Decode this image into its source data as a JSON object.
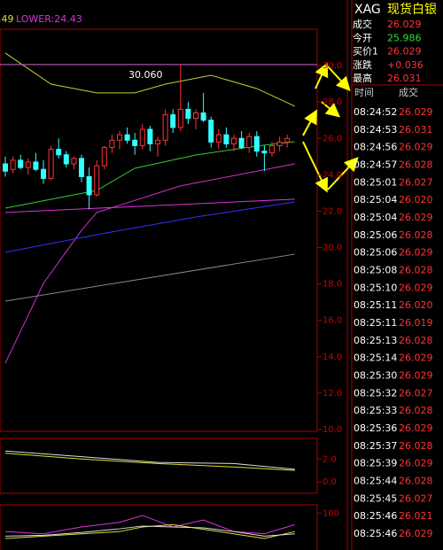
{
  "header": {
    "partial": ".49",
    "lower": "LOWER:24.43",
    "symbol": "XAG",
    "name": "现货白银"
  },
  "quote": [
    {
      "label": "成交",
      "value": "26.029",
      "color": "#ff3333"
    },
    {
      "label": "今开",
      "value": "25.986",
      "color": "#33dd33"
    },
    {
      "label": "买价1",
      "value": "26.029",
      "color": "#ff3333"
    },
    {
      "label": "涨跌",
      "value": "+0.036",
      "color": "#ff3333"
    },
    {
      "label": "最高",
      "value": "26.031",
      "color": "#ff3333"
    }
  ],
  "trades": {
    "headers": [
      "时间",
      "成交"
    ],
    "rows": [
      [
        "08:24:52",
        "26.029"
      ],
      [
        "08:24:53",
        "26.031"
      ],
      [
        "08:24:56",
        "26.029"
      ],
      [
        "08:24:57",
        "26.028"
      ],
      [
        "08:25:01",
        "26.027"
      ],
      [
        "08:25:04",
        "26.020"
      ],
      [
        "08:25:04",
        "26.029"
      ],
      [
        "08:25:06",
        "26.028"
      ],
      [
        "08:25:06",
        "26.029"
      ],
      [
        "08:25:08",
        "26.028"
      ],
      [
        "08:25:10",
        "26.029"
      ],
      [
        "08:25:11",
        "26.020"
      ],
      [
        "08:25:11",
        "26.019"
      ],
      [
        "08:25:13",
        "26.028"
      ],
      [
        "08:25:14",
        "26.029"
      ],
      [
        "08:25:30",
        "26.029"
      ],
      [
        "08:25:32",
        "26.027"
      ],
      [
        "08:25:33",
        "26.028"
      ],
      [
        "08:25:36",
        "26.029"
      ],
      [
        "08:25:37",
        "26.028"
      ],
      [
        "08:25:39",
        "26.029"
      ],
      [
        "08:25:44",
        "26.028"
      ],
      [
        "08:25:45",
        "26.027"
      ],
      [
        "08:25:46",
        "26.021"
      ],
      [
        "08:25:46",
        "26.029"
      ]
    ]
  },
  "chart_data": [
    {
      "type": "candlestick",
      "ylim": [
        10,
        32
      ],
      "yticks": [
        {
          "value": 30,
          "label": "30.0"
        },
        {
          "value": 28,
          "label": "28.0"
        },
        {
          "value": 26,
          "label": "26.0"
        },
        {
          "value": 24,
          "label": "24.0"
        },
        {
          "value": 22,
          "label": "22.0"
        },
        {
          "value": 20,
          "label": "20.0"
        },
        {
          "value": 18,
          "label": "18.0"
        },
        {
          "value": 16,
          "label": "16.0"
        },
        {
          "value": 14,
          "label": "14.0"
        },
        {
          "value": 12,
          "label": "12.0"
        },
        {
          "value": 10,
          "label": "10.0"
        }
      ],
      "up_color": "#ff3333",
      "down_color": "#33ffff",
      "max_marker": {
        "value": 30.06,
        "label": "30.060"
      },
      "open": [
        24.6,
        24.3,
        24.8,
        24.4,
        24.7,
        24.3,
        23.8,
        25.4,
        25.1,
        24.6,
        24.9,
        23.9,
        22.9,
        24.5,
        25.5,
        25.9,
        26.2,
        25.9,
        25.6,
        26.5,
        25.7,
        25.9,
        27.3,
        26.6,
        27.6,
        27.1,
        27.4,
        27.0,
        25.8,
        26.2,
        25.7,
        26.0,
        25.5,
        26.1,
        25.3,
        25.2,
        25.6,
        25.8
      ],
      "high": [
        25.0,
        25.0,
        25.1,
        24.9,
        25.2,
        24.8,
        25.6,
        26.0,
        25.3,
        25.0,
        25.1,
        24.4,
        24.8,
        25.6,
        26.2,
        26.4,
        26.6,
        26.3,
        26.8,
        26.7,
        26.1,
        27.6,
        27.6,
        30.06,
        28.0,
        27.6,
        28.5,
        27.2,
        26.5,
        26.6,
        26.2,
        26.4,
        26.3,
        26.4,
        25.6,
        25.8,
        26.1,
        26.2
      ],
      "low": [
        23.9,
        24.1,
        24.3,
        24.0,
        24.2,
        23.5,
        23.7,
        24.9,
        24.4,
        24.3,
        23.6,
        22.1,
        22.8,
        24.3,
        25.2,
        25.4,
        25.7,
        25.1,
        25.4,
        25.3,
        25.0,
        25.6,
        26.3,
        26.4,
        26.8,
        26.5,
        26.9,
        25.5,
        25.4,
        25.5,
        25.3,
        25.4,
        25.2,
        25.0,
        24.2,
        25.0,
        25.3,
        25.5
      ],
      "close": [
        24.2,
        24.8,
        24.4,
        24.7,
        24.3,
        23.8,
        25.4,
        25.1,
        24.6,
        24.9,
        23.9,
        22.9,
        24.5,
        25.5,
        25.9,
        26.2,
        25.9,
        25.6,
        26.5,
        25.7,
        25.9,
        27.3,
        26.6,
        27.6,
        27.1,
        27.4,
        27.0,
        25.8,
        26.2,
        25.7,
        26.0,
        25.5,
        26.1,
        25.3,
        25.2,
        25.6,
        25.8,
        26.0
      ],
      "lines": [
        {
          "color": "#cccc33",
          "x": [
            0,
            6,
            12,
            17,
            21,
            27,
            33,
            38
          ],
          "values": [
            30.69,
            28.98,
            28.5,
            28.5,
            28.98,
            29.47,
            28.74,
            27.77
          ]
        },
        {
          "color": "#33cc33",
          "x": [
            0,
            12,
            17,
            25,
            33,
            38
          ],
          "values": [
            22.17,
            23.14,
            24.36,
            25.09,
            25.58,
            25.82
          ]
        },
        {
          "color": "#cc33cc",
          "x": [
            0,
            5,
            10,
            12,
            23,
            38
          ],
          "values": [
            13.65,
            18.03,
            20.95,
            21.93,
            23.39,
            24.6
          ]
        },
        {
          "color": "#3333ff",
          "x": [
            0,
            12,
            25,
            38
          ],
          "values": [
            19.74,
            20.71,
            21.68,
            22.51
          ]
        },
        {
          "color": "#888888",
          "x": [
            0,
            38
          ],
          "values": [
            17.06,
            19.64
          ]
        },
        {
          "color": "#dd33dd",
          "x": [
            0,
            38
          ],
          "values": [
            21.93,
            22.66
          ]
        }
      ]
    },
    {
      "type": "line",
      "ylim": [
        -1,
        3.8
      ],
      "yticks": [
        {
          "value": 2,
          "label": "2.0"
        },
        {
          "value": 0,
          "label": "0.0"
        }
      ],
      "series": [
        {
          "color": "#dddd33",
          "x": [
            0,
            10,
            20,
            30,
            38
          ],
          "values": [
            2.5,
            2.0,
            1.6,
            1.3,
            1.0
          ]
        },
        {
          "color": "#dddddd",
          "x": [
            0,
            10,
            20,
            30,
            38
          ],
          "values": [
            2.7,
            2.2,
            1.7,
            1.6,
            1.1
          ]
        }
      ]
    },
    {
      "type": "line",
      "ylim": [
        20,
        118
      ],
      "yticks": [
        100
      ],
      "series": [
        {
          "color": "#dd33dd",
          "x": [
            0,
            5,
            10,
            15,
            18,
            22,
            26,
            30,
            34,
            38
          ],
          "values": [
            60,
            55,
            70,
            80,
            95,
            70,
            85,
            60,
            55,
            75
          ]
        },
        {
          "color": "#dddd33",
          "x": [
            0,
            5,
            10,
            15,
            18,
            22,
            26,
            30,
            34,
            38
          ],
          "values": [
            45,
            50,
            55,
            60,
            70,
            75,
            65,
            55,
            45,
            60
          ]
        },
        {
          "color": "#dddddd",
          "x": [
            0,
            5,
            10,
            15,
            18,
            22,
            26,
            30,
            34,
            38
          ],
          "values": [
            50,
            52,
            58,
            66,
            72,
            70,
            68,
            60,
            50,
            55
          ]
        }
      ]
    }
  ]
}
